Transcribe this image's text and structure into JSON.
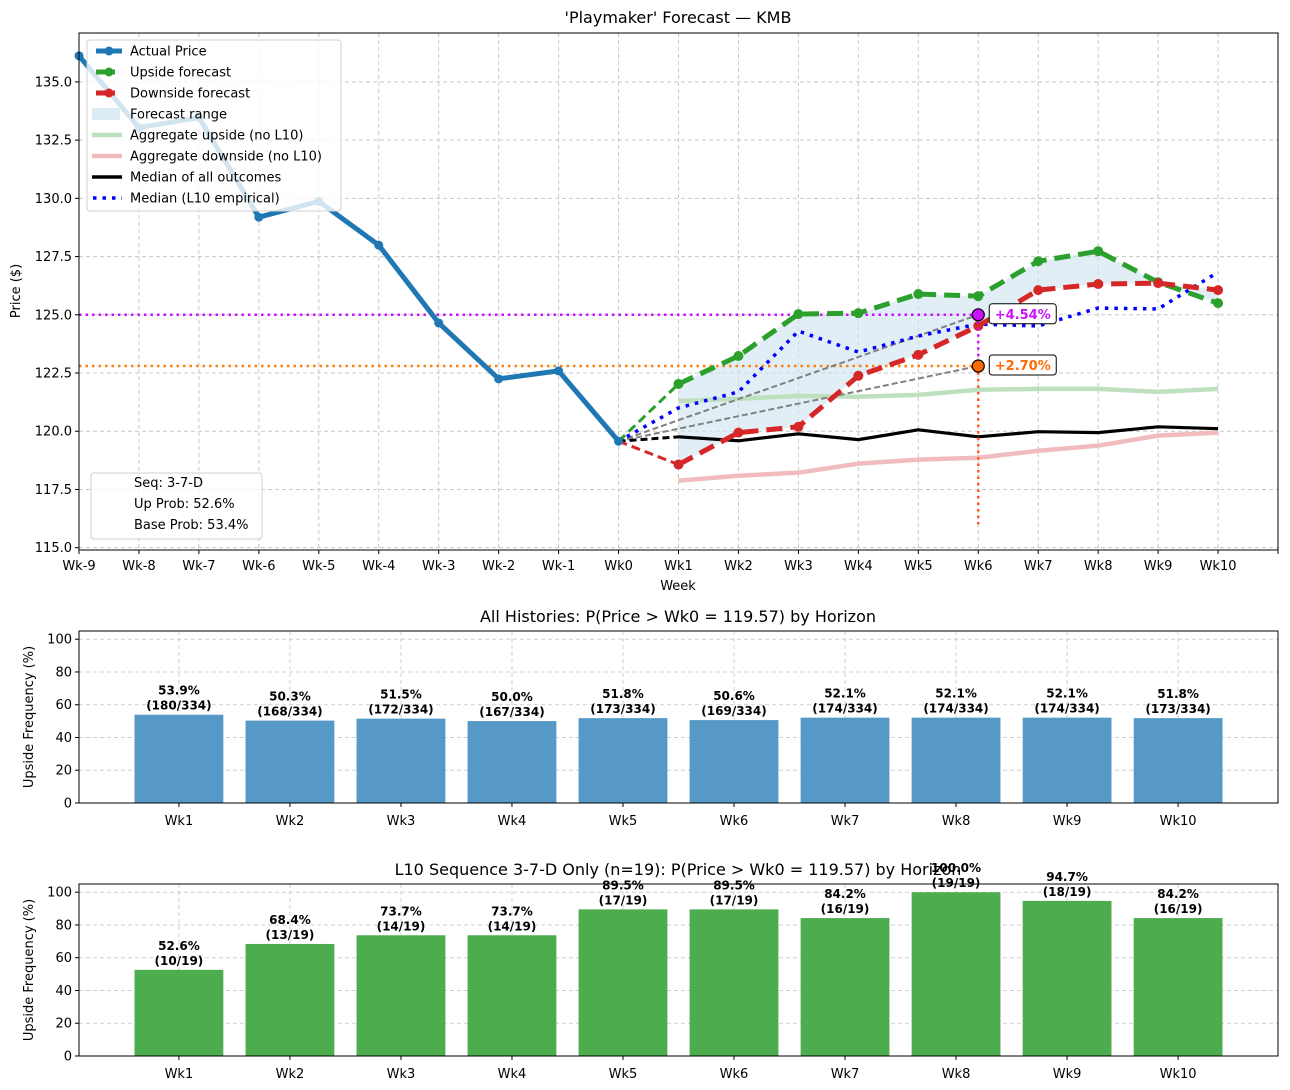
{
  "chart_data": [
    {
      "type": "line",
      "title": "'Playmaker' Forecast — KMB",
      "xlabel": "Week",
      "ylabel": "Price ($)",
      "x_ticks": [
        "Wk-9",
        "Wk-8",
        "Wk-7",
        "Wk-6",
        "Wk-5",
        "Wk-4",
        "Wk-3",
        "Wk-2",
        "Wk-1",
        "Wk0",
        "Wk1",
        "Wk2",
        "Wk3",
        "Wk4",
        "Wk5",
        "Wk6",
        "Wk7",
        "Wk8",
        "Wk9",
        "Wk10"
      ],
      "xlim": [
        -9,
        11
      ],
      "ylim": [
        114.9,
        137.1
      ],
      "y_ticks": [
        115.0,
        117.5,
        120.0,
        122.5,
        125.0,
        127.5,
        130.0,
        132.5,
        135.0
      ],
      "grid": true,
      "legend_position": "top-left",
      "series": [
        {
          "name": "Actual Price",
          "color": "#1f77b4",
          "style": "solid-markers",
          "x": [
            -9,
            -8,
            -7,
            -6,
            -5,
            -4,
            -3,
            -2,
            -1,
            0
          ],
          "values": [
            136.12,
            133.04,
            133.47,
            129.19,
            129.87,
            127.99,
            124.65,
            122.25,
            122.59,
            119.57
          ]
        },
        {
          "name": "Upside forecast",
          "color": "#2ca02c",
          "style": "dashed-markers",
          "x": [
            1,
            2,
            3,
            4,
            5,
            6,
            7,
            8,
            9,
            10
          ],
          "values": [
            122.03,
            123.23,
            125.03,
            125.07,
            125.89,
            125.8,
            127.3,
            127.73,
            126.4,
            125.5
          ]
        },
        {
          "name": "Downside forecast",
          "color": "#d62728",
          "style": "dashed-markers",
          "x": [
            1,
            2,
            3,
            4,
            5,
            6,
            7,
            8,
            9,
            10
          ],
          "values": [
            118.57,
            119.94,
            120.19,
            122.38,
            123.28,
            124.52,
            126.06,
            126.32,
            126.36,
            126.06
          ]
        },
        {
          "name": "Forecast range",
          "color": "#cfe3f0",
          "style": "fill"
        },
        {
          "name": "Aggregate upside (no L10)",
          "color": "#bfe0bf",
          "style": "solid-thick",
          "x": [
            1,
            2,
            3,
            4,
            5,
            6,
            7,
            8,
            9,
            10
          ],
          "values": [
            121.3,
            121.39,
            121.52,
            121.48,
            121.56,
            121.78,
            121.82,
            121.82,
            121.69,
            121.82
          ]
        },
        {
          "name": "Aggregate downside (no L10)",
          "color": "#f1bcbd",
          "style": "solid-thick",
          "x": [
            1,
            2,
            3,
            4,
            5,
            6,
            7,
            8,
            9,
            10
          ],
          "values": [
            117.88,
            118.09,
            118.22,
            118.61,
            118.78,
            118.86,
            119.16,
            119.38,
            119.81,
            119.94
          ]
        },
        {
          "name": "Median of all outcomes",
          "color": "#000000",
          "style": "solid",
          "x": [
            1,
            2,
            3,
            4,
            5,
            6,
            7,
            8,
            9,
            10
          ],
          "values": [
            119.76,
            119.59,
            119.89,
            119.64,
            120.06,
            119.76,
            119.98,
            119.94,
            120.19,
            120.11
          ]
        },
        {
          "name": "Median (L10 empirical)",
          "color": "#0000ff",
          "style": "dotted",
          "x": [
            1,
            2,
            3,
            4,
            5,
            6,
            7,
            8,
            9,
            10
          ],
          "values": [
            121.0,
            121.69,
            124.3,
            123.4,
            124.09,
            124.6,
            124.52,
            125.29,
            125.25,
            126.83
          ]
        }
      ],
      "reference_lines": [
        {
          "name": "upside-target",
          "value": 125.0,
          "color": "#cc11ff"
        },
        {
          "name": "base-target",
          "value": 122.8,
          "color": "#ff7f0e"
        }
      ],
      "annotations": [
        {
          "name": "upside-target-label",
          "text": "+4.54%",
          "x": 6,
          "y": 125.0,
          "color": "#cc11ff"
        },
        {
          "name": "base-target-label",
          "text": "+2.70%",
          "x": 6,
          "y": 122.8,
          "color": "#ff6a00"
        }
      ],
      "info_box": {
        "lines": [
          "Seq: 3-7-D",
          "Up Prob: 52.6%",
          "Base Prob: 53.4%"
        ],
        "position": "bottom-left"
      }
    },
    {
      "type": "bar",
      "title": "All Histories: P(Price > Wk0 = 119.57) by Horizon",
      "ylabel": "Upside Frequency (%)",
      "xlabel": "",
      "ylim": [
        0,
        105
      ],
      "y_ticks": [
        0,
        20,
        40,
        60,
        80,
        100
      ],
      "grid": true,
      "color": "#5698c6",
      "categories": [
        "Wk1",
        "Wk2",
        "Wk3",
        "Wk4",
        "Wk5",
        "Wk6",
        "Wk7",
        "Wk8",
        "Wk9",
        "Wk10"
      ],
      "values": [
        53.9,
        50.3,
        51.5,
        50.0,
        51.8,
        50.6,
        52.1,
        52.1,
        52.1,
        51.8
      ],
      "labels_pct": [
        "53.9%",
        "50.3%",
        "51.5%",
        "50.0%",
        "51.8%",
        "50.6%",
        "52.1%",
        "52.1%",
        "52.1%",
        "51.8%"
      ],
      "labels_count": [
        "(180/334)",
        "(168/334)",
        "(172/334)",
        "(167/334)",
        "(173/334)",
        "(169/334)",
        "(174/334)",
        "(174/334)",
        "(174/334)",
        "(173/334)"
      ]
    },
    {
      "type": "bar",
      "title": "L10 Sequence 3-7-D Only (n=19): P(Price > Wk0 = 119.57) by Horizon",
      "ylabel": "Upside Frequency (%)",
      "xlabel": "",
      "ylim": [
        0,
        105
      ],
      "y_ticks": [
        0,
        20,
        40,
        60,
        80,
        100
      ],
      "grid": true,
      "color": "#4dac4d",
      "categories": [
        "Wk1",
        "Wk2",
        "Wk3",
        "Wk4",
        "Wk5",
        "Wk6",
        "Wk7",
        "Wk8",
        "Wk9",
        "Wk10"
      ],
      "values": [
        52.6,
        68.4,
        73.7,
        73.7,
        89.5,
        89.5,
        84.2,
        100.0,
        94.7,
        84.2
      ],
      "labels_pct": [
        "52.6%",
        "68.4%",
        "73.7%",
        "73.7%",
        "89.5%",
        "89.5%",
        "84.2%",
        "100.0%",
        "94.7%",
        "84.2%"
      ],
      "labels_count": [
        "(10/19)",
        "(13/19)",
        "(14/19)",
        "(14/19)",
        "(17/19)",
        "(17/19)",
        "(16/19)",
        "(19/19)",
        "(18/19)",
        "(16/19)"
      ]
    }
  ]
}
